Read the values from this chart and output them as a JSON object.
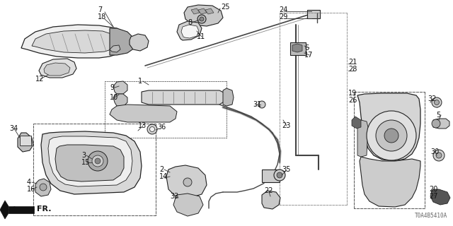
{
  "bg_color": "#ffffff",
  "fig_width": 6.4,
  "fig_height": 3.2,
  "dpi": 100,
  "watermark": "T0A4B5410A",
  "label_fontsize": 7.0,
  "label_color": "#111111",
  "line_color": "#222222"
}
